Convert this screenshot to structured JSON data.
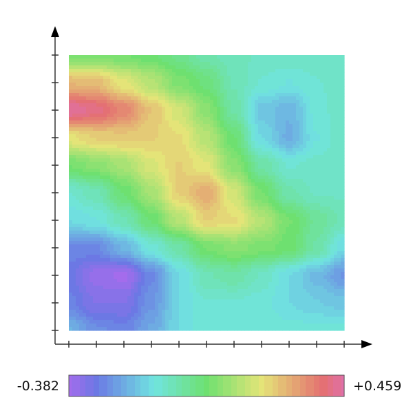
{
  "chart_data": {
    "type": "heatmap",
    "title": "",
    "xlabel": "",
    "ylabel": "",
    "grid": false,
    "x_ticks": 11,
    "y_ticks": 11,
    "colorbar": {
      "min": -0.382,
      "max": 0.459,
      "min_label": "-0.382",
      "max_label": "+0.459",
      "placement": "bottom",
      "colors": [
        {
          "pos": 0.0,
          "color": "#a46cec"
        },
        {
          "pos": 0.1,
          "color": "#6c78e4"
        },
        {
          "pos": 0.31,
          "color": "#70e4e0"
        },
        {
          "pos": 0.5,
          "color": "#6ee070"
        },
        {
          "pos": 0.7,
          "color": "#e4e478"
        },
        {
          "pos": 0.92,
          "color": "#e47070"
        },
        {
          "pos": 1.0,
          "color": "#e070a8"
        }
      ]
    },
    "values_rows_top_to_bottom": [
      [
        0.06,
        0.06,
        0.05,
        0.03,
        0.0,
        -0.05,
        -0.07,
        -0.08,
        -0.08,
        -0.08,
        -0.08
      ],
      [
        0.28,
        0.27,
        0.2,
        0.14,
        0.06,
        0.02,
        -0.06,
        -0.1,
        -0.12,
        -0.1,
        -0.08
      ],
      [
        0.45,
        0.42,
        0.36,
        0.26,
        0.18,
        0.08,
        -0.04,
        -0.17,
        -0.2,
        -0.11,
        -0.08
      ],
      [
        0.21,
        0.24,
        0.25,
        0.24,
        0.22,
        0.14,
        0.03,
        -0.14,
        -0.21,
        -0.12,
        -0.08
      ],
      [
        0.05,
        0.08,
        0.12,
        0.19,
        0.24,
        0.2,
        0.08,
        -0.04,
        -0.1,
        -0.09,
        -0.08
      ],
      [
        -0.1,
        -0.06,
        0.03,
        0.12,
        0.24,
        0.3,
        0.18,
        0.05,
        -0.05,
        -0.08,
        -0.08
      ],
      [
        -0.14,
        -0.12,
        -0.06,
        0.03,
        0.14,
        0.24,
        0.22,
        0.14,
        0.05,
        -0.02,
        -0.06
      ],
      [
        -0.27,
        -0.27,
        -0.2,
        -0.11,
        -0.04,
        0.05,
        0.08,
        0.06,
        0.04,
        -0.04,
        -0.14
      ],
      [
        -0.3,
        -0.36,
        -0.38,
        -0.27,
        -0.14,
        -0.06,
        -0.04,
        -0.08,
        -0.14,
        -0.19,
        -0.25
      ],
      [
        -0.28,
        -0.33,
        -0.33,
        -0.25,
        -0.14,
        -0.1,
        -0.1,
        -0.11,
        -0.14,
        -0.16,
        -0.17
      ],
      [
        -0.2,
        -0.26,
        -0.28,
        -0.22,
        -0.14,
        -0.1,
        -0.1,
        -0.1,
        -0.11,
        -0.11,
        -0.11
      ]
    ]
  }
}
